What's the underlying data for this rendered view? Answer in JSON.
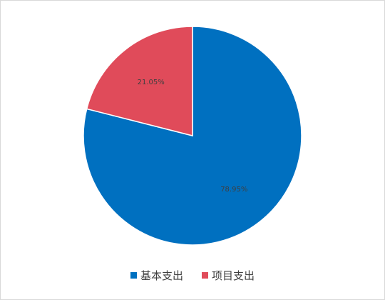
{
  "chart_data": {
    "type": "pie",
    "title": "",
    "categories": [
      "基本支出",
      "项目支出"
    ],
    "values": [
      78.95,
      21.05
    ],
    "data_labels": [
      "78.95%",
      "21.05%"
    ],
    "colors": [
      "#0070C0",
      "#E04B5A"
    ],
    "start_angle_deg": 0,
    "direction": "clockwise",
    "legend_position": "bottom"
  }
}
